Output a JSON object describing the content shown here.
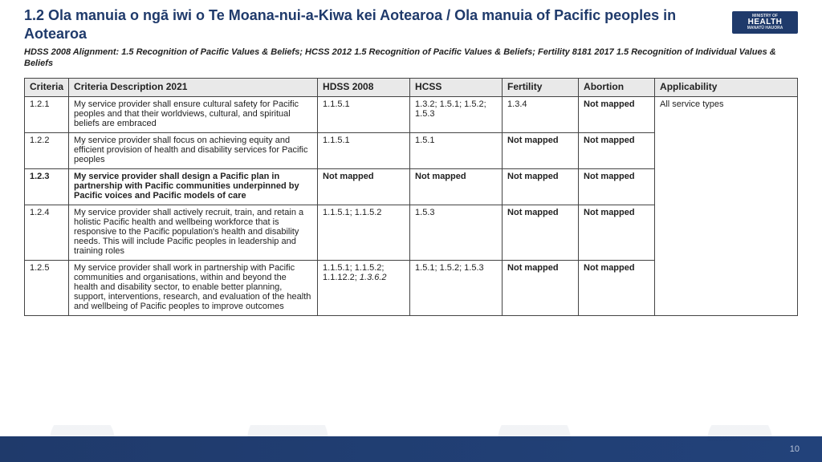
{
  "title": "1.2 Ola manuia o ngā iwi o Te Moana-nui-a-Kiwa kei Aotearoa / Ola manuia of Pacific peoples in Aotearoa",
  "subtitle": "HDSS 2008 Alignment: 1.5 Recognition of Pacific Values & Beliefs; HCSS 2012 1.5 Recognition of Pacific Values & Beliefs; Fertility 8181 2017 1.5 Recognition of Individual Values & Beliefs",
  "logo": {
    "line1": "MINISTRY OF",
    "line2": "HEALTH",
    "line3": "MANATŪ HAUORA"
  },
  "page_number": "10",
  "columns": {
    "criteria": "Criteria",
    "desc": "Criteria Description 2021",
    "hdss": "HDSS 2008",
    "hcss": "HCSS",
    "fertility": "Fertility",
    "abortion": "Abortion",
    "applicability": "Applicability"
  },
  "rows": [
    {
      "criteria": "1.2.1",
      "desc": "My service provider shall ensure cultural safety for Pacific peoples and that their worldviews, cultural, and spiritual beliefs are embraced",
      "hdss": "1.1.5.1",
      "hcss": "1.3.2; 1.5.1; 1.5.2; 1.5.3",
      "fertility": "1.3.4",
      "abortion": "Not mapped",
      "applicability": "All service types",
      "bold": false
    },
    {
      "criteria": "1.2.2",
      "desc": "My service provider shall focus on achieving equity and efficient provision of health and disability services for Pacific peoples",
      "hdss": "1.1.5.1",
      "hcss": "1.5.1",
      "fertility": "Not mapped",
      "abortion": "Not mapped",
      "applicability": "",
      "bold": false
    },
    {
      "criteria": "1.2.3",
      "desc": "My service provider shall design a Pacific plan in partnership with Pacific communities underpinned by Pacific voices and Pacific models of care",
      "hdss": "Not mapped",
      "hcss": "Not mapped",
      "fertility": "Not mapped",
      "abortion": "Not mapped",
      "applicability": "",
      "bold": true
    },
    {
      "criteria": "1.2.4",
      "desc": "My service provider shall actively recruit, train, and retain a holistic Pacific health and wellbeing workforce that is responsive to the Pacific population's health and disability needs. This will include Pacific peoples in leadership and training roles",
      "hdss": "1.1.5.1; 1.1.5.2",
      "hcss": "1.5.3",
      "fertility": "Not mapped",
      "abortion": "Not mapped",
      "applicability": "",
      "bold": false
    },
    {
      "criteria": "1.2.5",
      "desc": "My service provider shall work in partnership with Pacific communities and organisations, within and beyond the health and disability sector, to enable better planning, support, interventions, research, and evaluation of the health and wellbeing of Pacific peoples to improve outcomes",
      "hdss_html": "1.1.5.1; 1.1.5.2; 1.1.12.2; <span class=\"italic\">1.3.6.2</span>",
      "hdss": "1.1.5.1; 1.1.5.2; 1.1.12.2; 1.3.6.2",
      "hcss": "1.5.1; 1.5.2; 1.5.3",
      "fertility": "Not mapped",
      "abortion": "Not mapped",
      "applicability": "",
      "bold": false
    }
  ],
  "styling": {
    "title_color": "#1f3a6b",
    "footer_bg": "#1f3a6b",
    "header_bg": "#e9e9e9",
    "border_color": "#444444",
    "title_fontsize": 18,
    "body_fontsize": 11
  }
}
